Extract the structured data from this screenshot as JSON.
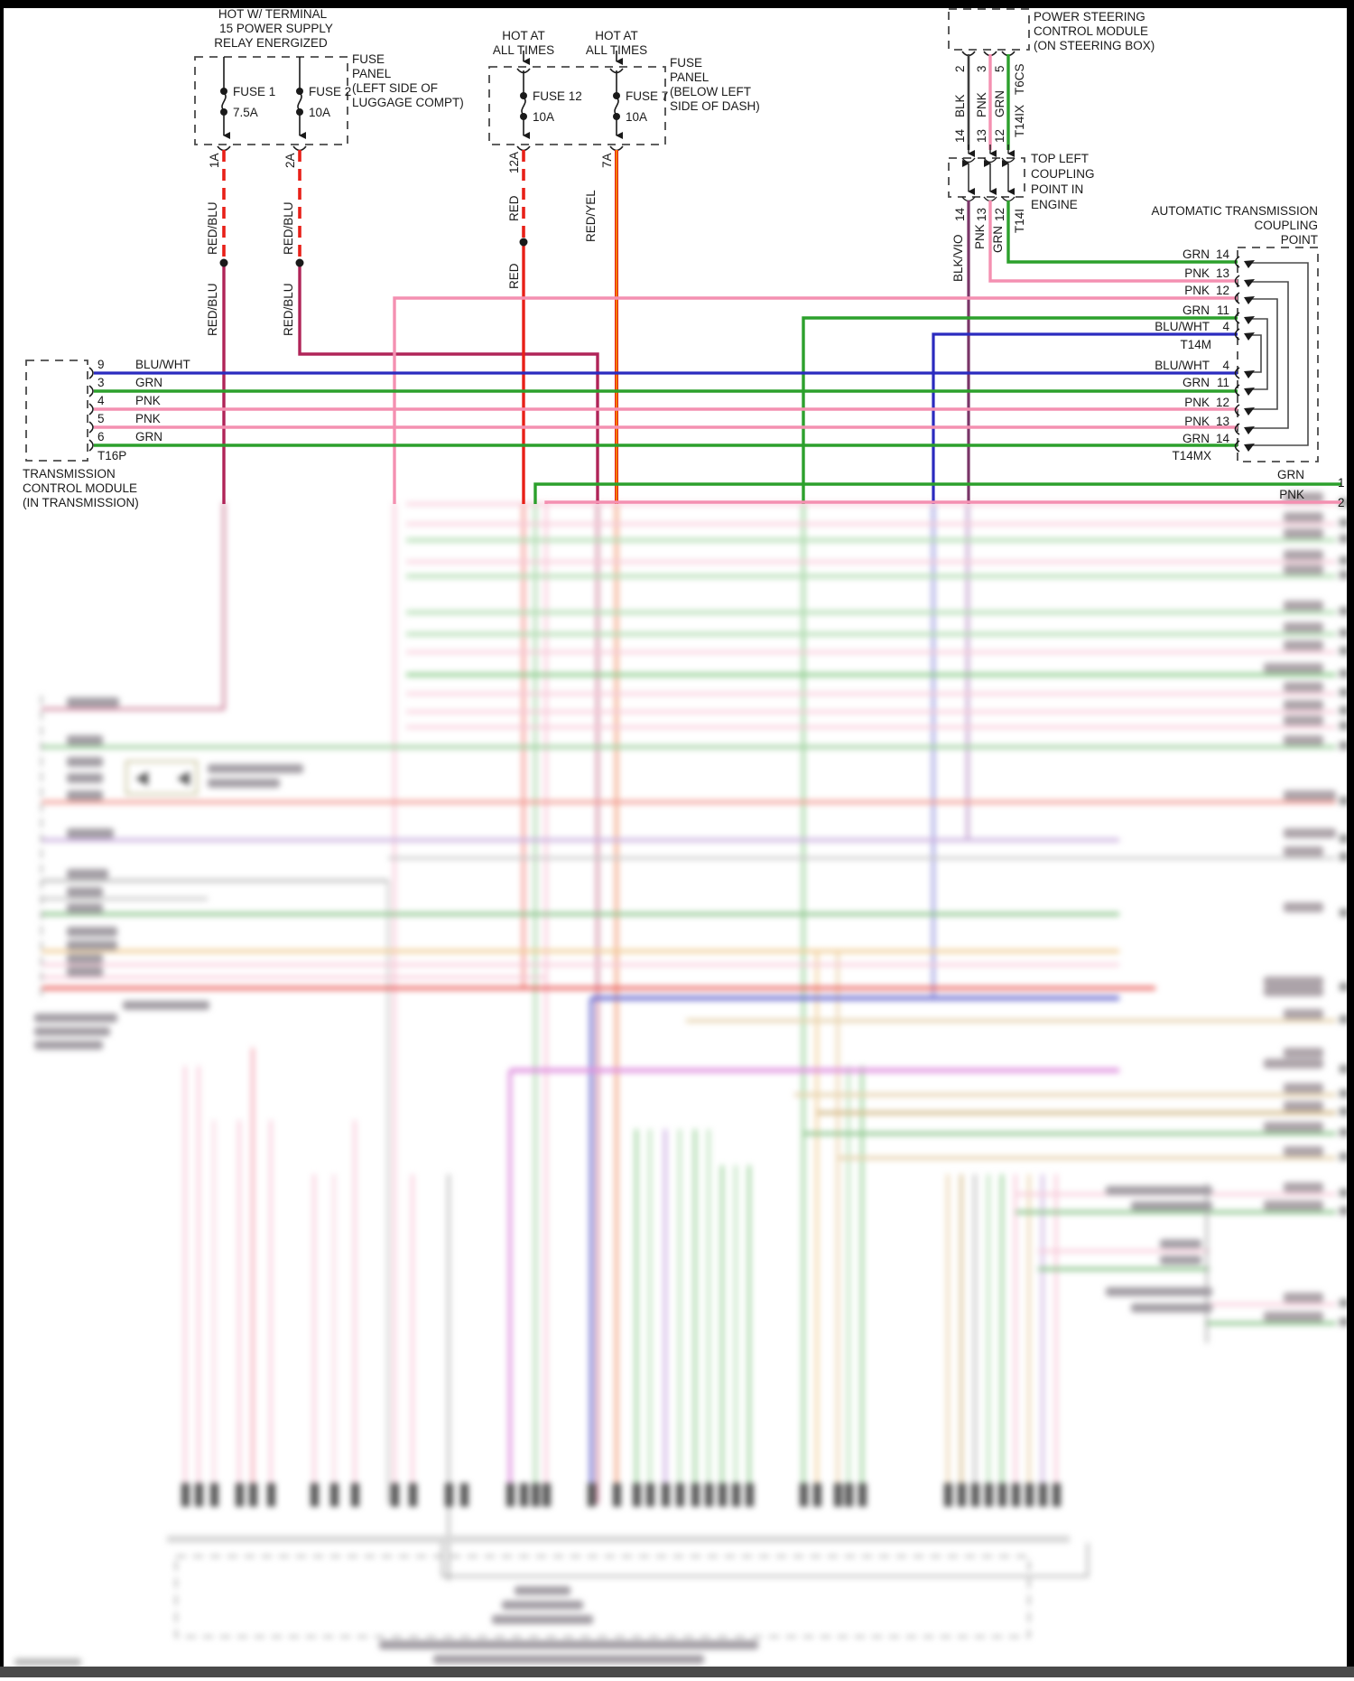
{
  "diagram_title": "Automatic transmission / power steering wiring diagram",
  "palette": {
    "red": "#e82018",
    "red_blu": "#b02458",
    "red_yel_core": "#f5a800",
    "pnk": "#f490b1",
    "grn": "#2ca02c",
    "blu_wht": "#2b2bbf",
    "blk": "#3d3d3d",
    "blk_vio": "#7a3568",
    "box_dash": "#4a4a4a"
  },
  "fuse_panel_luggage": {
    "heading": [
      "HOT W/ TERMINAL",
      "15 POWER SUPPLY",
      "RELAY ENERGIZED"
    ],
    "location": [
      "FUSE",
      "PANEL",
      "(LEFT SIDE OF",
      "LUGGAGE COMPT)"
    ],
    "fuse1": {
      "name": "FUSE 1",
      "rating": "7.5A",
      "pin": "1A",
      "wire_upper": "RED/BLU",
      "wire_lower": "RED/BLU"
    },
    "fuse2": {
      "name": "FUSE 2",
      "rating": "10A",
      "pin": "2A",
      "wire_upper": "RED/BLU",
      "wire_lower": "RED/BLU"
    }
  },
  "fuse_panel_dash": {
    "heading1": [
      "HOT AT",
      "ALL TIMES"
    ],
    "heading2": [
      "HOT AT",
      "ALL TIMES"
    ],
    "location": [
      "FUSE",
      "PANEL",
      "(BELOW LEFT",
      "SIDE OF DASH)"
    ],
    "fuse12": {
      "name": "FUSE 12",
      "rating": "10A",
      "pin": "12A",
      "wire_upper": "RED",
      "wire_lower": "RED"
    },
    "fuse7": {
      "name": "FUSE 7",
      "rating": "10A",
      "pin": "7A",
      "wire": "RED/YEL"
    }
  },
  "power_steering_module": {
    "title": [
      "POWER STEERING",
      "CONTROL MODULE",
      "(ON STEERING BOX)"
    ],
    "connector": "T6CS",
    "pins": [
      "2",
      "3",
      "5"
    ],
    "wires": [
      "BLK",
      "PNK",
      "GRN"
    ],
    "harness": "T14IX",
    "harness_pins": [
      "14",
      "13",
      "12"
    ]
  },
  "engine_coupling": {
    "title": [
      "TOP LEFT",
      "COUPLING",
      "POINT IN",
      "ENGINE"
    ],
    "connector": "T14I",
    "pins": [
      "14",
      "13",
      "12"
    ],
    "wires": [
      "BLK/VIO",
      "PNK",
      "GRN"
    ]
  },
  "transmission_module": {
    "title": [
      "TRANSMISSION",
      "CONTROL MODULE",
      "(IN TRANSMISSION)"
    ],
    "connector": "T16P",
    "pins": [
      {
        "pin": "9",
        "wire": "BLU/WHT"
      },
      {
        "pin": "3",
        "wire": "GRN"
      },
      {
        "pin": "4",
        "wire": "PNK"
      },
      {
        "pin": "5",
        "wire": "PNK"
      },
      {
        "pin": "6",
        "wire": "GRN"
      }
    ]
  },
  "at_coupling": {
    "title": [
      "AUTOMATIC TRANSMISSION",
      "COUPLING",
      "POINT"
    ],
    "connector_upper": "T14M",
    "connector_lower": "T14MX",
    "rows": [
      {
        "wire": "GRN",
        "pin": "14"
      },
      {
        "wire": "PNK",
        "pin": "13"
      },
      {
        "wire": "PNK",
        "pin": "12"
      },
      {
        "wire": "GRN",
        "pin": "11"
      },
      {
        "wire": "BLU/WHT",
        "pin": "4"
      },
      {
        "wire": "BLU/WHT",
        "pin": "4"
      },
      {
        "wire": "GRN",
        "pin": "11"
      },
      {
        "wire": "PNK",
        "pin": "12"
      },
      {
        "wire": "PNK",
        "pin": "13"
      },
      {
        "wire": "GRN",
        "pin": "14"
      }
    ]
  },
  "right_outputs": [
    {
      "wire": "GRN",
      "pin": "1"
    },
    {
      "wire": "PNK",
      "pin": "2"
    }
  ]
}
